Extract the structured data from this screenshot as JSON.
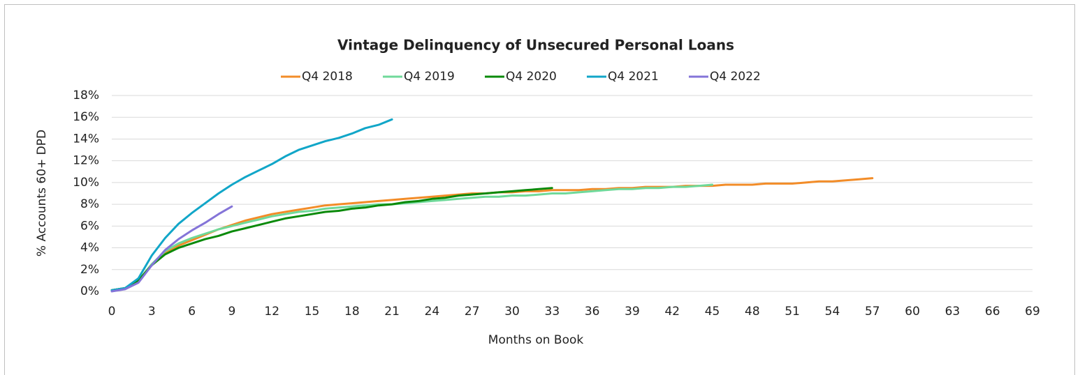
{
  "chart_data": {
    "type": "line",
    "title": "Vintage Delinquency of Unsecured Personal Loans",
    "x_label": "Months on Book",
    "y_label": "% Accounts 60+ DPD",
    "x": [
      0,
      1,
      2,
      3,
      4,
      5,
      6,
      7,
      8,
      9,
      10,
      11,
      12,
      13,
      14,
      15,
      16,
      17,
      18,
      19,
      20,
      21,
      22,
      23,
      24,
      25,
      26,
      27,
      28,
      29,
      30,
      31,
      32,
      33,
      34,
      35,
      36,
      37,
      38,
      39,
      40,
      41,
      42,
      43,
      44,
      45,
      46,
      47,
      48,
      49,
      50,
      51,
      52,
      53,
      54,
      55,
      56,
      57
    ],
    "series": [
      {
        "name": "Q4 2018",
        "color": "#f28c28",
        "values": [
          0.1,
          0.3,
          1.0,
          2.5,
          3.6,
          4.2,
          4.7,
          5.2,
          5.7,
          6.1,
          6.5,
          6.8,
          7.1,
          7.3,
          7.5,
          7.7,
          7.9,
          8.0,
          8.1,
          8.2,
          8.3,
          8.4,
          8.5,
          8.6,
          8.7,
          8.8,
          8.9,
          9.0,
          9.0,
          9.1,
          9.1,
          9.2,
          9.2,
          9.3,
          9.3,
          9.3,
          9.4,
          9.4,
          9.5,
          9.5,
          9.6,
          9.6,
          9.6,
          9.7,
          9.7,
          9.7,
          9.8,
          9.8,
          9.8,
          9.9,
          9.9,
          9.9,
          10.0,
          10.1,
          10.1,
          10.2,
          10.3,
          10.4
        ]
      },
      {
        "name": "Q4 2019",
        "color": "#6fd99a",
        "values": [
          0.1,
          0.3,
          1.0,
          2.5,
          3.7,
          4.4,
          4.9,
          5.3,
          5.7,
          6.0,
          6.3,
          6.6,
          6.9,
          7.1,
          7.3,
          7.4,
          7.6,
          7.7,
          7.8,
          7.9,
          8.0,
          8.0,
          8.1,
          8.2,
          8.3,
          8.4,
          8.5,
          8.6,
          8.7,
          8.7,
          8.8,
          8.8,
          8.9,
          9.0,
          9.0,
          9.1,
          9.2,
          9.3,
          9.4,
          9.4,
          9.5,
          9.5,
          9.6,
          9.6,
          9.7,
          9.8,
          null,
          null,
          null,
          null,
          null,
          null,
          null,
          null,
          null,
          null,
          null,
          null
        ]
      },
      {
        "name": "Q4 2020",
        "color": "#0a8a0a",
        "values": [
          0.1,
          0.3,
          1.0,
          2.4,
          3.4,
          4.0,
          4.4,
          4.8,
          5.1,
          5.5,
          5.8,
          6.1,
          6.4,
          6.7,
          6.9,
          7.1,
          7.3,
          7.4,
          7.6,
          7.7,
          7.9,
          8.0,
          8.2,
          8.3,
          8.5,
          8.6,
          8.8,
          8.9,
          9.0,
          9.1,
          9.2,
          9.3,
          9.4,
          9.5,
          null,
          null,
          null,
          null,
          null,
          null,
          null,
          null,
          null,
          null,
          null,
          null,
          null,
          null,
          null,
          null,
          null,
          null,
          null,
          null,
          null,
          null,
          null,
          null
        ]
      },
      {
        "name": "Q4 2021",
        "color": "#11a6c8",
        "values": [
          0.1,
          0.3,
          1.2,
          3.3,
          4.9,
          6.2,
          7.2,
          8.1,
          9.0,
          9.8,
          10.5,
          11.1,
          11.7,
          12.4,
          13.0,
          13.4,
          13.8,
          14.1,
          14.5,
          15.0,
          15.3,
          15.8,
          null,
          null,
          null,
          null,
          null,
          null,
          null,
          null,
          null,
          null,
          null,
          null,
          null,
          null,
          null,
          null,
          null,
          null,
          null,
          null,
          null,
          null,
          null,
          null,
          null,
          null,
          null,
          null,
          null,
          null,
          null,
          null,
          null,
          null,
          null,
          null
        ]
      },
      {
        "name": "Q4 2022",
        "color": "#8474d8",
        "values": [
          0.0,
          0.2,
          0.8,
          2.4,
          3.8,
          4.8,
          5.6,
          6.3,
          7.1,
          7.8,
          null,
          null,
          null,
          null,
          null,
          null,
          null,
          null,
          null,
          null,
          null,
          null,
          null,
          null,
          null,
          null,
          null,
          null,
          null,
          null,
          null,
          null,
          null,
          null,
          null,
          null,
          null,
          null,
          null,
          null,
          null,
          null,
          null,
          null,
          null,
          null,
          null,
          null,
          null,
          null,
          null,
          null,
          null,
          null,
          null,
          null,
          null,
          null
        ]
      }
    ],
    "xlim": [
      0,
      69
    ],
    "xticks": [
      0,
      3,
      6,
      9,
      12,
      15,
      18,
      21,
      24,
      27,
      30,
      33,
      36,
      39,
      42,
      45,
      48,
      51,
      54,
      57,
      60,
      63,
      66,
      69
    ],
    "ylim": [
      0,
      18
    ],
    "yticks": [
      {
        "value": 0,
        "label": "0%"
      },
      {
        "value": 2,
        "label": "2%"
      },
      {
        "value": 4,
        "label": "4%"
      },
      {
        "value": 6,
        "label": "6%"
      },
      {
        "value": 8,
        "label": "8%"
      },
      {
        "value": 10,
        "label": "10%"
      },
      {
        "value": 12,
        "label": "12%"
      },
      {
        "value": 14,
        "label": "14%"
      },
      {
        "value": 16,
        "label": "16%"
      },
      {
        "value": 18,
        "label": "18%"
      }
    ],
    "grid": true,
    "legend": "top"
  }
}
